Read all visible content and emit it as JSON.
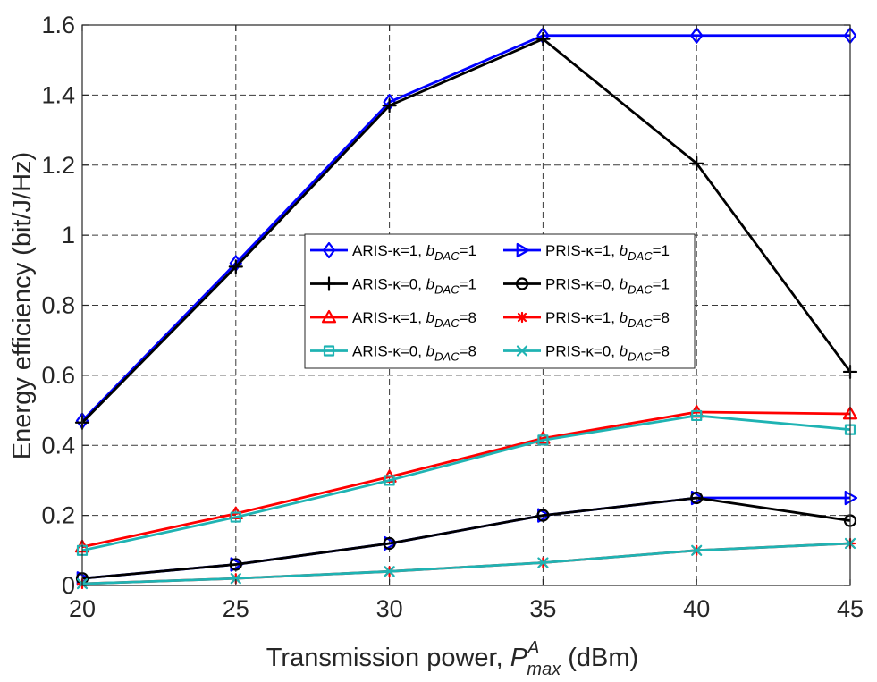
{
  "chart_data": {
    "type": "line",
    "x": [
      20,
      25,
      30,
      35,
      40,
      45
    ],
    "xlim": [
      20,
      45
    ],
    "ylim": [
      0,
      1.6
    ],
    "xticks": [
      "20",
      "25",
      "30",
      "35",
      "40",
      "45"
    ],
    "yticks": [
      "0",
      "0.2",
      "0.4",
      "0.6",
      "0.8",
      "1",
      "1.2",
      "1.4",
      "1.6"
    ],
    "xlabel": {
      "prefix": "Transmission power, ",
      "symbol": "P",
      "sup": "A",
      "sub": "max",
      "suffix": " (dBm)"
    },
    "ylabel": "Energy efficiency (bit/J/Hz)",
    "grid": true,
    "legend_position": "center",
    "series": [
      {
        "name": "ARIS-κ=1, b_DAC=1",
        "label": {
          "pre": "ARIS-κ=1, ",
          "b": "b",
          "sub": "DAC",
          "post": "=1"
        },
        "color": "#0000ff",
        "marker": "diamond",
        "values": [
          0.47,
          0.92,
          1.38,
          1.57,
          1.57,
          1.57
        ]
      },
      {
        "name": "ARIS-κ=0, b_DAC=1",
        "label": {
          "pre": "ARIS-κ=0, ",
          "b": "b",
          "sub": "DAC",
          "post": "=1"
        },
        "color": "#000000",
        "marker": "plus",
        "values": [
          0.465,
          0.91,
          1.37,
          1.56,
          1.205,
          0.61
        ]
      },
      {
        "name": "ARIS-κ=1, b_DAC=8",
        "label": {
          "pre": "ARIS-κ=1, ",
          "b": "b",
          "sub": "DAC",
          "post": "=8"
        },
        "color": "#ff0000",
        "marker": "triangle",
        "values": [
          0.11,
          0.205,
          0.31,
          0.42,
          0.495,
          0.49
        ]
      },
      {
        "name": "ARIS-κ=0, b_DAC=8",
        "label": {
          "pre": "ARIS-κ=0, ",
          "b": "b",
          "sub": "DAC",
          "post": "=8"
        },
        "color": "#1fb3b3",
        "marker": "square",
        "values": [
          0.1,
          0.195,
          0.3,
          0.415,
          0.485,
          0.445
        ]
      },
      {
        "name": "PRIS-κ=1, b_DAC=1",
        "label": {
          "pre": "PRIS-κ=1, ",
          "b": "b",
          "sub": "DAC",
          "post": "=1"
        },
        "color": "#0000ff",
        "marker": "triangle-right",
        "values": [
          0.02,
          0.06,
          0.12,
          0.2,
          0.25,
          0.25
        ]
      },
      {
        "name": "PRIS-κ=0, b_DAC=1",
        "label": {
          "pre": "PRIS-κ=0, ",
          "b": "b",
          "sub": "DAC",
          "post": "=1"
        },
        "color": "#000000",
        "marker": "circle",
        "values": [
          0.02,
          0.06,
          0.12,
          0.2,
          0.25,
          0.185
        ]
      },
      {
        "name": "PRIS-κ=1, b_DAC=8",
        "label": {
          "pre": "PRIS-κ=1, ",
          "b": "b",
          "sub": "DAC",
          "post": "=8"
        },
        "color": "#ff0000",
        "marker": "asterisk",
        "values": [
          0.005,
          0.02,
          0.04,
          0.065,
          0.1,
          0.12
        ]
      },
      {
        "name": "PRIS-κ=0, b_DAC=8",
        "label": {
          "pre": "PRIS-κ=0, ",
          "b": "b",
          "sub": "DAC",
          "post": "=8"
        },
        "color": "#1fb3b3",
        "marker": "x",
        "values": [
          0.005,
          0.02,
          0.04,
          0.065,
          0.1,
          0.12
        ]
      }
    ]
  }
}
